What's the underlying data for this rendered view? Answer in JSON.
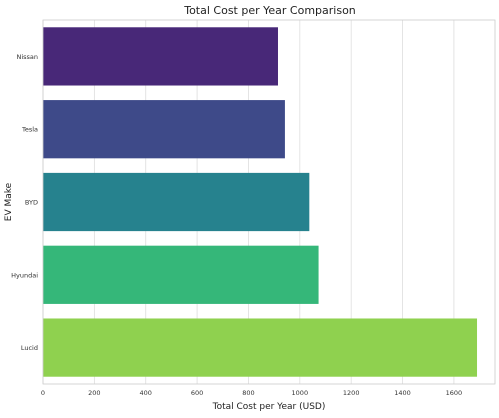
{
  "chart_data": {
    "type": "bar",
    "orientation": "horizontal",
    "title": "Total Cost per Year Comparison",
    "xlabel": "Total Cost per Year (USD)",
    "ylabel": "EV Make",
    "categories": [
      "Nissan",
      "Tesla",
      "BYD",
      "Hyundai",
      "Lucid"
    ],
    "values": [
      915,
      942,
      1037,
      1073,
      1690
    ],
    "xlim": [
      0,
      1760
    ],
    "xticks": [
      0,
      200,
      400,
      600,
      800,
      1000,
      1200,
      1400,
      1600
    ],
    "xtick_labels": [
      "0",
      "200",
      "400",
      "600",
      "800",
      "1000",
      "1200",
      "1400",
      "1600"
    ],
    "colors": [
      "#482878",
      "#3e4a89",
      "#26828e",
      "#35b779",
      "#8fd14f"
    ],
    "grid": "vertical",
    "legend": "none"
  }
}
